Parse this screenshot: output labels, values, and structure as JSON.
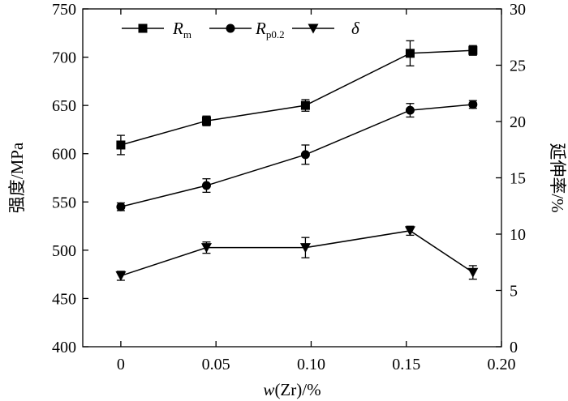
{
  "chart_data": {
    "type": "line",
    "x": [
      0,
      0.045,
      0.097,
      0.152,
      0.185
    ],
    "xlabel": "w(Zr)/%",
    "xlim": [
      -0.02,
      0.2
    ],
    "xticks": [
      "0",
      "0.05",
      "0.10",
      "0.15",
      "0.20"
    ],
    "ylabel_left": "强度/MPa",
    "ylim_left": [
      400,
      750
    ],
    "yticks_left": [
      "400",
      "450",
      "500",
      "550",
      "600",
      "650",
      "700",
      "750"
    ],
    "ylabel_right": "延伸率/%",
    "ylim_right": [
      0,
      30
    ],
    "yticks_right": [
      "0",
      "5",
      "10",
      "15",
      "20",
      "25",
      "30"
    ],
    "legend_position": "top-left",
    "grid": false,
    "series": [
      {
        "name": "Rm",
        "name_main": "R",
        "name_sub": "m",
        "axis": "left",
        "marker": "square",
        "values": [
          609,
          634,
          650,
          704,
          707
        ],
        "errors": [
          10,
          5,
          6,
          13,
          5
        ]
      },
      {
        "name": "Rp0.2",
        "name_main": "R",
        "name_sub": "p0.2",
        "axis": "left",
        "marker": "circle",
        "values": [
          545,
          567,
          599,
          645,
          651
        ],
        "errors": [
          4,
          7,
          10,
          7,
          4
        ]
      },
      {
        "name": "δ",
        "name_main": "δ",
        "name_sub": "",
        "axis": "right",
        "marker": "triangle-down",
        "values": [
          6.3,
          8.8,
          8.8,
          10.3,
          6.6
        ],
        "errors": [
          0.4,
          0.5,
          0.9,
          0.4,
          0.6
        ]
      }
    ]
  }
}
